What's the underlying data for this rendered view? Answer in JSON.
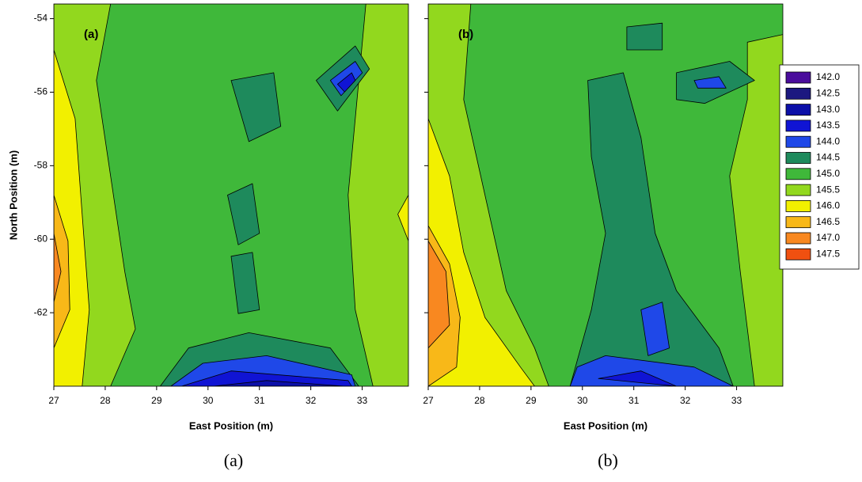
{
  "chart_data": [
    {
      "type": "contour",
      "panel_label": "(a)",
      "caption": "(a)",
      "xlabel": "East Position (m)",
      "ylabel": "North Position (m)",
      "xlim": [
        27,
        33.9
      ],
      "xticks": [
        27,
        28,
        29,
        30,
        31,
        32,
        33
      ],
      "ylim": [
        -64,
        -53.6
      ],
      "yticks": [
        -54,
        -56,
        -58,
        -60,
        -62
      ]
    },
    {
      "type": "contour",
      "panel_label": "(b)",
      "caption": "(b)",
      "xlabel": "East Position (m)",
      "xlim": [
        27,
        33.9
      ],
      "xticks": [
        27,
        28,
        29,
        30,
        31,
        32,
        33
      ],
      "ylim": [
        -64,
        -53.6
      ]
    }
  ],
  "legend": {
    "levels": [
      {
        "value": 142,
        "label": "142.0"
      },
      {
        "value": 142.5,
        "label": "142.5"
      },
      {
        "value": 143,
        "label": "143.0"
      },
      {
        "value": 143.5,
        "label": "143.5"
      },
      {
        "value": 144,
        "label": "144.0"
      },
      {
        "value": 144.5,
        "label": "144.5"
      },
      {
        "value": 145,
        "label": "145.0"
      },
      {
        "value": 145.5,
        "label": "145.5"
      },
      {
        "value": 146,
        "label": "146.0"
      },
      {
        "value": 146.5,
        "label": "146.5"
      },
      {
        "value": 147,
        "label": "147.0"
      },
      {
        "value": 147.5,
        "label": "147.5"
      }
    ],
    "colors": [
      "#4a0c9c",
      "#1c1880",
      "#0c10a8",
      "#1014d4",
      "#1f48e8",
      "#1e8a5c",
      "#3fb83a",
      "#92d81e",
      "#f2f000",
      "#f8b818",
      "#f88820",
      "#f05010"
    ]
  }
}
